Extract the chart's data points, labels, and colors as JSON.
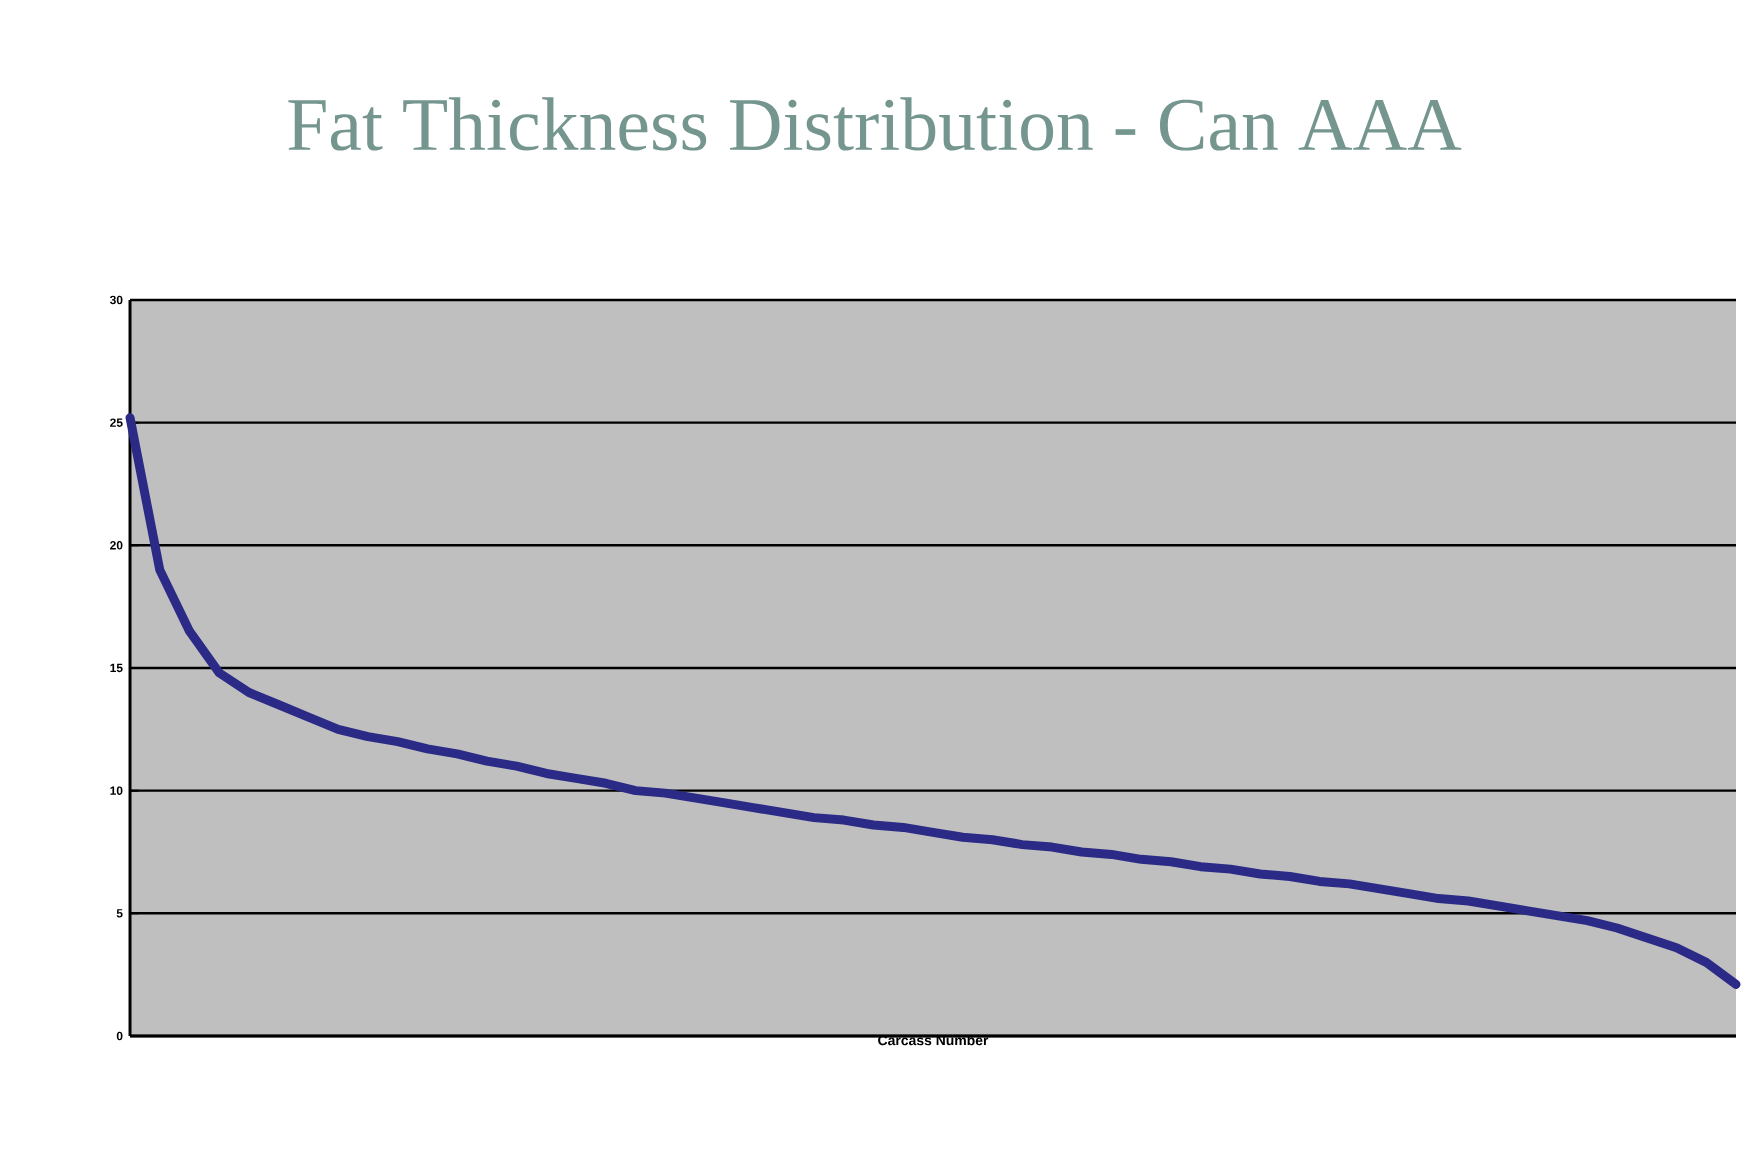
{
  "chart_data": {
    "type": "line",
    "title": "Fat Thickness Distribution  - Can AAA",
    "xlabel": "Carcass Number",
    "categories": [
      null,
      null,
      null,
      null,
      null,
      null,
      null,
      null,
      null,
      null,
      null,
      null,
      null,
      null,
      null,
      null,
      null,
      null,
      null,
      null,
      null,
      null,
      null,
      null,
      null,
      null,
      null,
      null,
      null,
      null,
      null,
      null,
      null,
      null,
      null,
      null,
      null,
      null,
      null,
      null,
      null,
      null,
      null,
      null,
      null,
      null,
      null,
      null,
      null,
      null,
      null,
      null,
      null,
      null,
      null
    ],
    "series": [
      {
        "color": "#2b2a86",
        "values": [
          25.2,
          19.0,
          16.5,
          14.8,
          14.0,
          13.5,
          13.0,
          12.5,
          12.2,
          12.0,
          11.7,
          11.5,
          11.2,
          11.0,
          10.7,
          10.5,
          10.3,
          10.0,
          9.9,
          9.7,
          9.5,
          9.3,
          9.1,
          8.9,
          8.8,
          8.6,
          8.5,
          8.3,
          8.1,
          8.0,
          7.8,
          7.7,
          7.5,
          7.4,
          7.2,
          7.1,
          6.9,
          6.8,
          6.6,
          6.5,
          6.3,
          6.2,
          6.0,
          5.8,
          5.6,
          5.5,
          5.3,
          5.1,
          4.9,
          4.7,
          4.4,
          4.0,
          3.6,
          3.0,
          2.1
        ]
      }
    ],
    "ylim": [
      0,
      30
    ],
    "yticks": [
      0,
      5,
      10,
      15,
      20,
      25,
      30
    ],
    "grid": "y"
  }
}
